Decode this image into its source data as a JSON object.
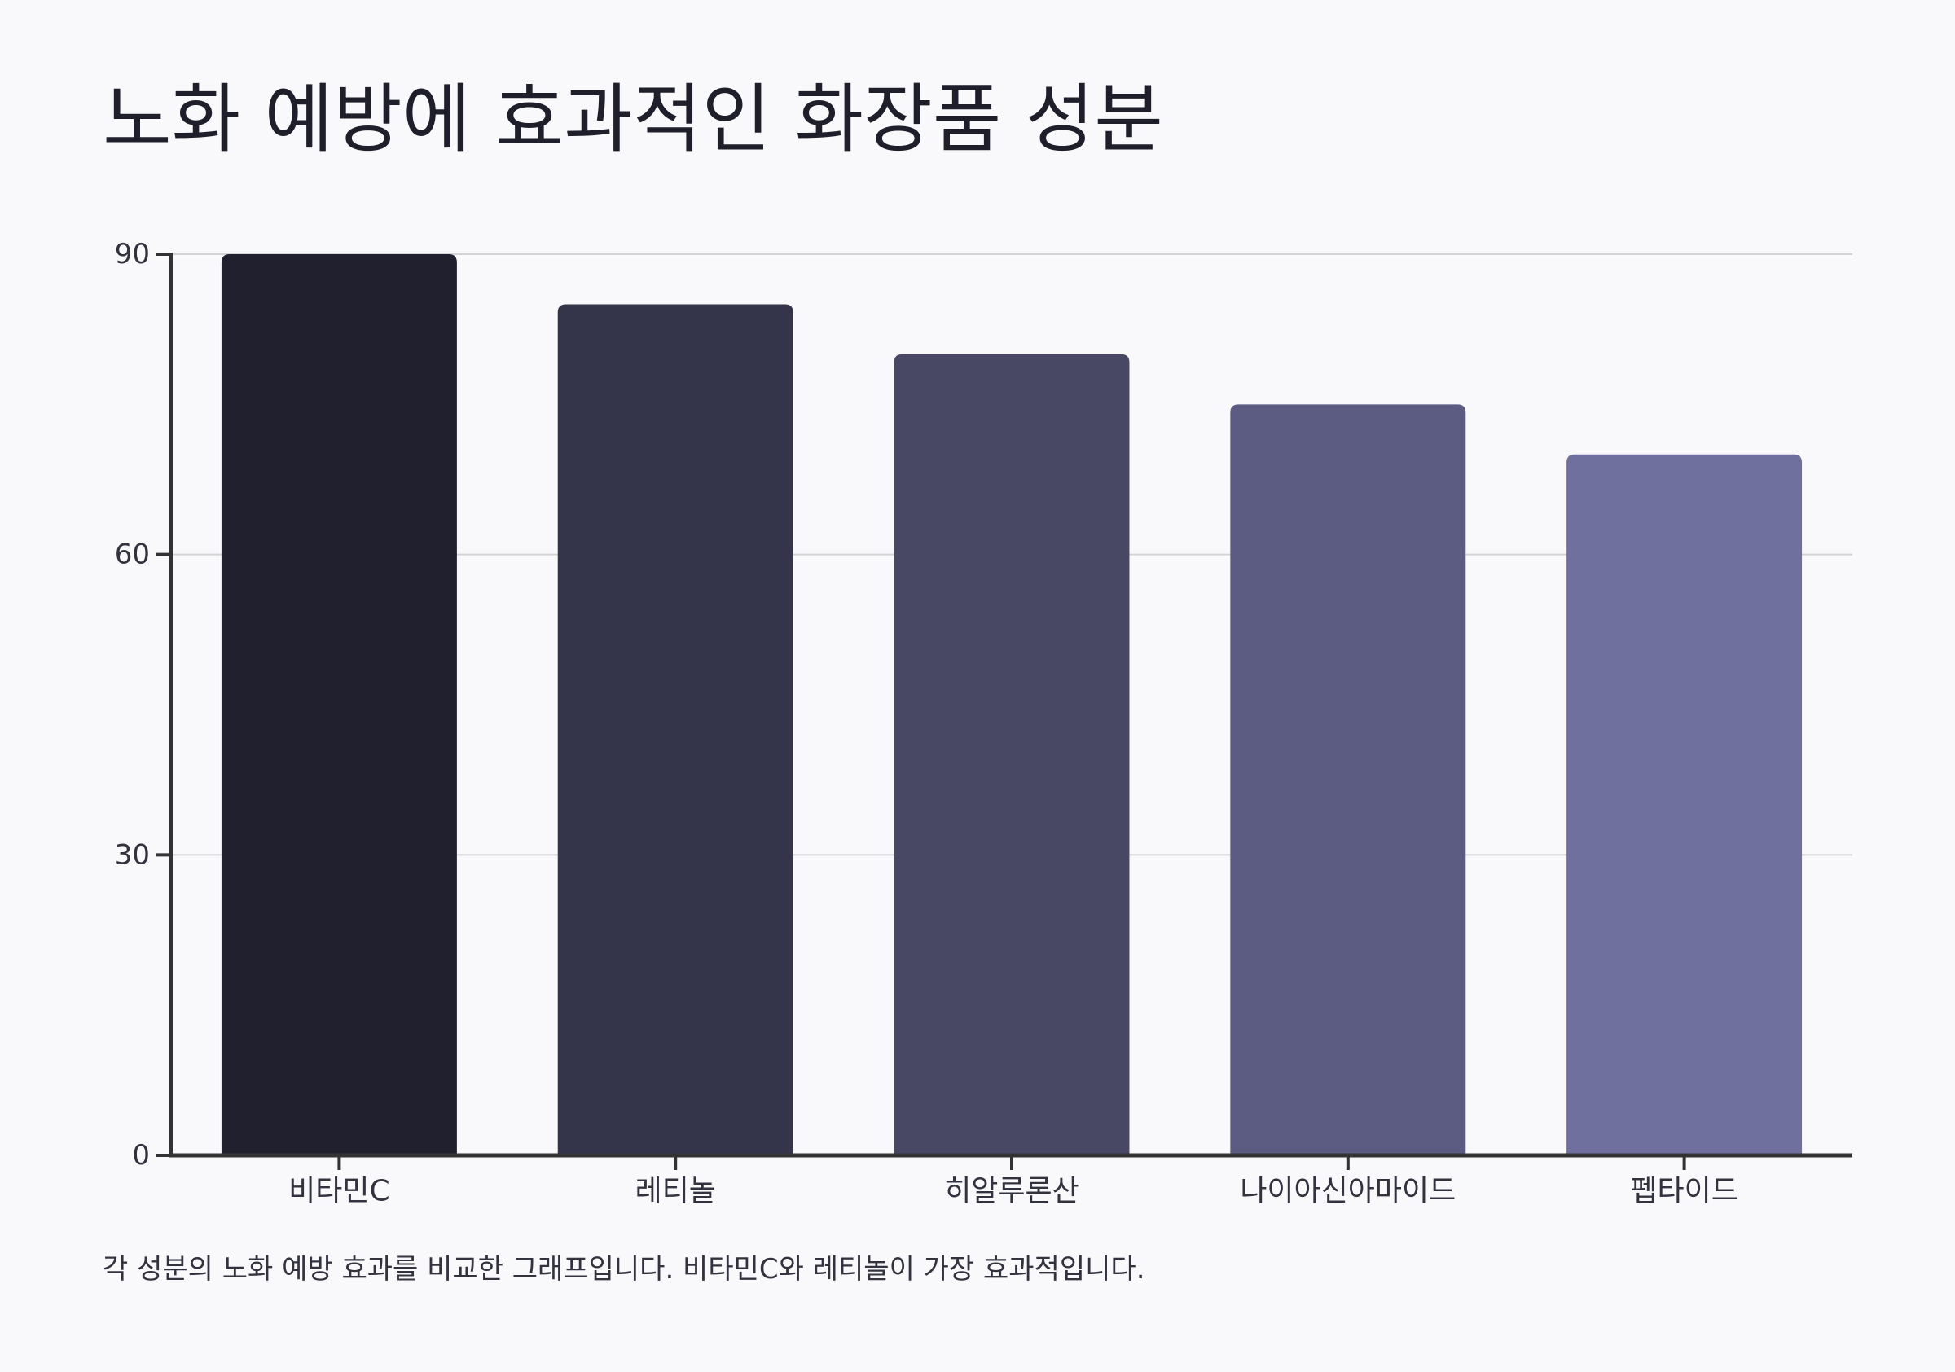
{
  "title": "노화 예방에 효과적인 화장품 성분",
  "caption": "각 성분의 노화 예방 효과를 비교한 그래프입니다. 비타민C와 레티놀이 가장 효과적입니다.",
  "chart_data": {
    "type": "bar",
    "title": "노화 예방에 효과적인 화장품 성분",
    "xlabel": "",
    "ylabel": "",
    "categories": [
      "비타민C",
      "레티놀",
      "히알루론산",
      "나이아신아마이드",
      "펩타이드"
    ],
    "values": [
      90,
      85,
      80,
      75,
      70
    ],
    "colors": [
      "#20202e",
      "#34344a",
      "#484864",
      "#5c5c82",
      "#70709e"
    ],
    "ylim": [
      0,
      90
    ],
    "yticks": [
      "0",
      "30",
      "60",
      "90"
    ],
    "grid": true,
    "legend": "none"
  }
}
